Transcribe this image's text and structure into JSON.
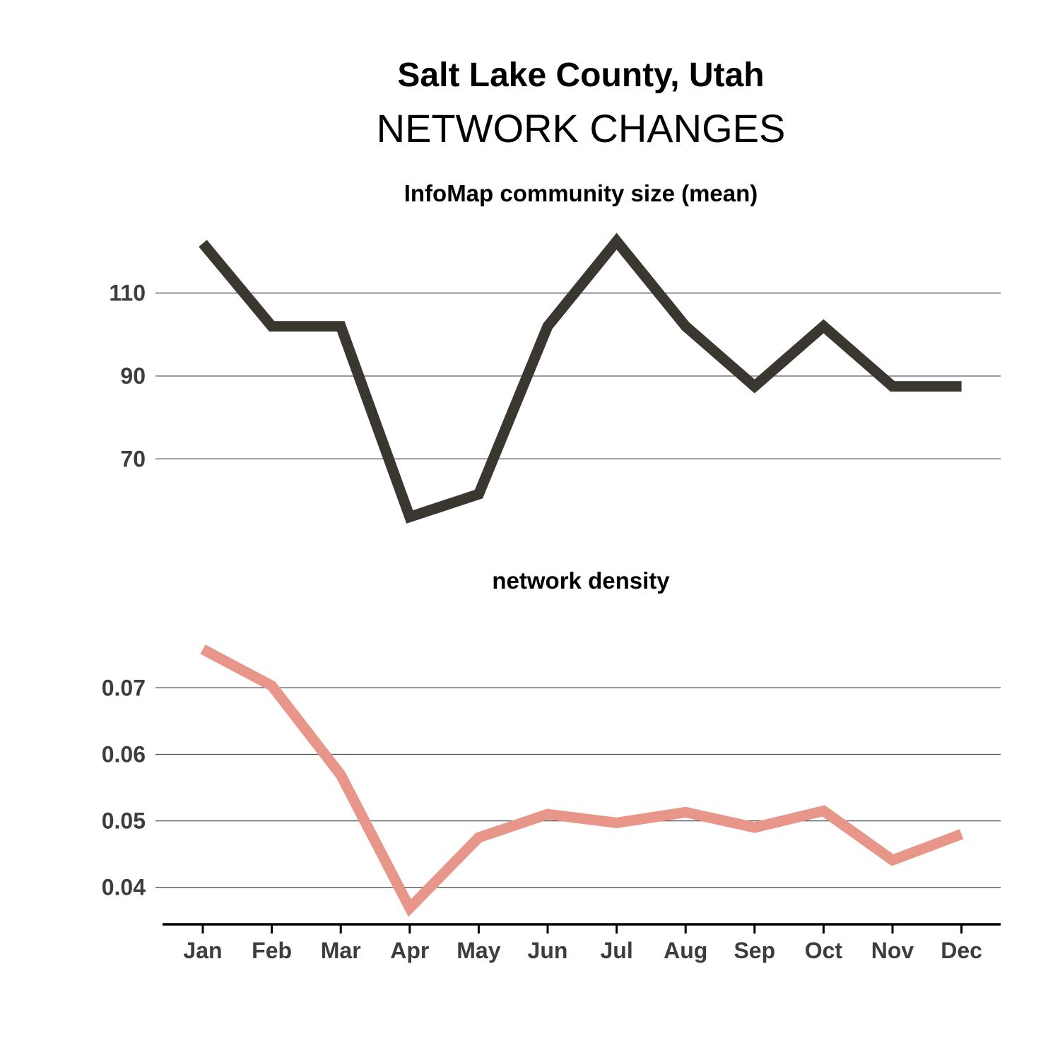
{
  "title": "Salt Lake County, Utah",
  "subtitle": "NETWORK CHANGES",
  "chart_data": [
    {
      "type": "line",
      "title": "InfoMap community size (mean)",
      "categories": [
        "Jan",
        "Feb",
        "Mar",
        "Apr",
        "May",
        "Jun",
        "Jul",
        "Aug",
        "Sep",
        "Oct",
        "Nov",
        "Dec"
      ],
      "series": [
        {
          "values": [
            122,
            102,
            102,
            56,
            61.5,
            102,
            122.5,
            102,
            87.5,
            102,
            87.5,
            87.5
          ],
          "color": "#3a3731"
        }
      ],
      "yticks": [
        70,
        90,
        110
      ],
      "ylim": [
        52,
        127
      ],
      "grid": true
    },
    {
      "type": "line",
      "title": "network density",
      "categories": [
        "Jan",
        "Feb",
        "Mar",
        "Apr",
        "May",
        "Jun",
        "Jul",
        "Aug",
        "Sep",
        "Oct",
        "Nov",
        "Dec"
      ],
      "series": [
        {
          "values": [
            0.0758,
            0.0703,
            0.0569,
            0.0369,
            0.0475,
            0.051,
            0.0497,
            0.0513,
            0.049,
            0.0515,
            0.0441,
            0.048
          ],
          "color": "#e8968a"
        }
      ],
      "yticks": [
        0.04,
        0.05,
        0.06,
        0.07
      ],
      "ylim": [
        0.0353,
        0.0815
      ],
      "grid": true
    }
  ]
}
